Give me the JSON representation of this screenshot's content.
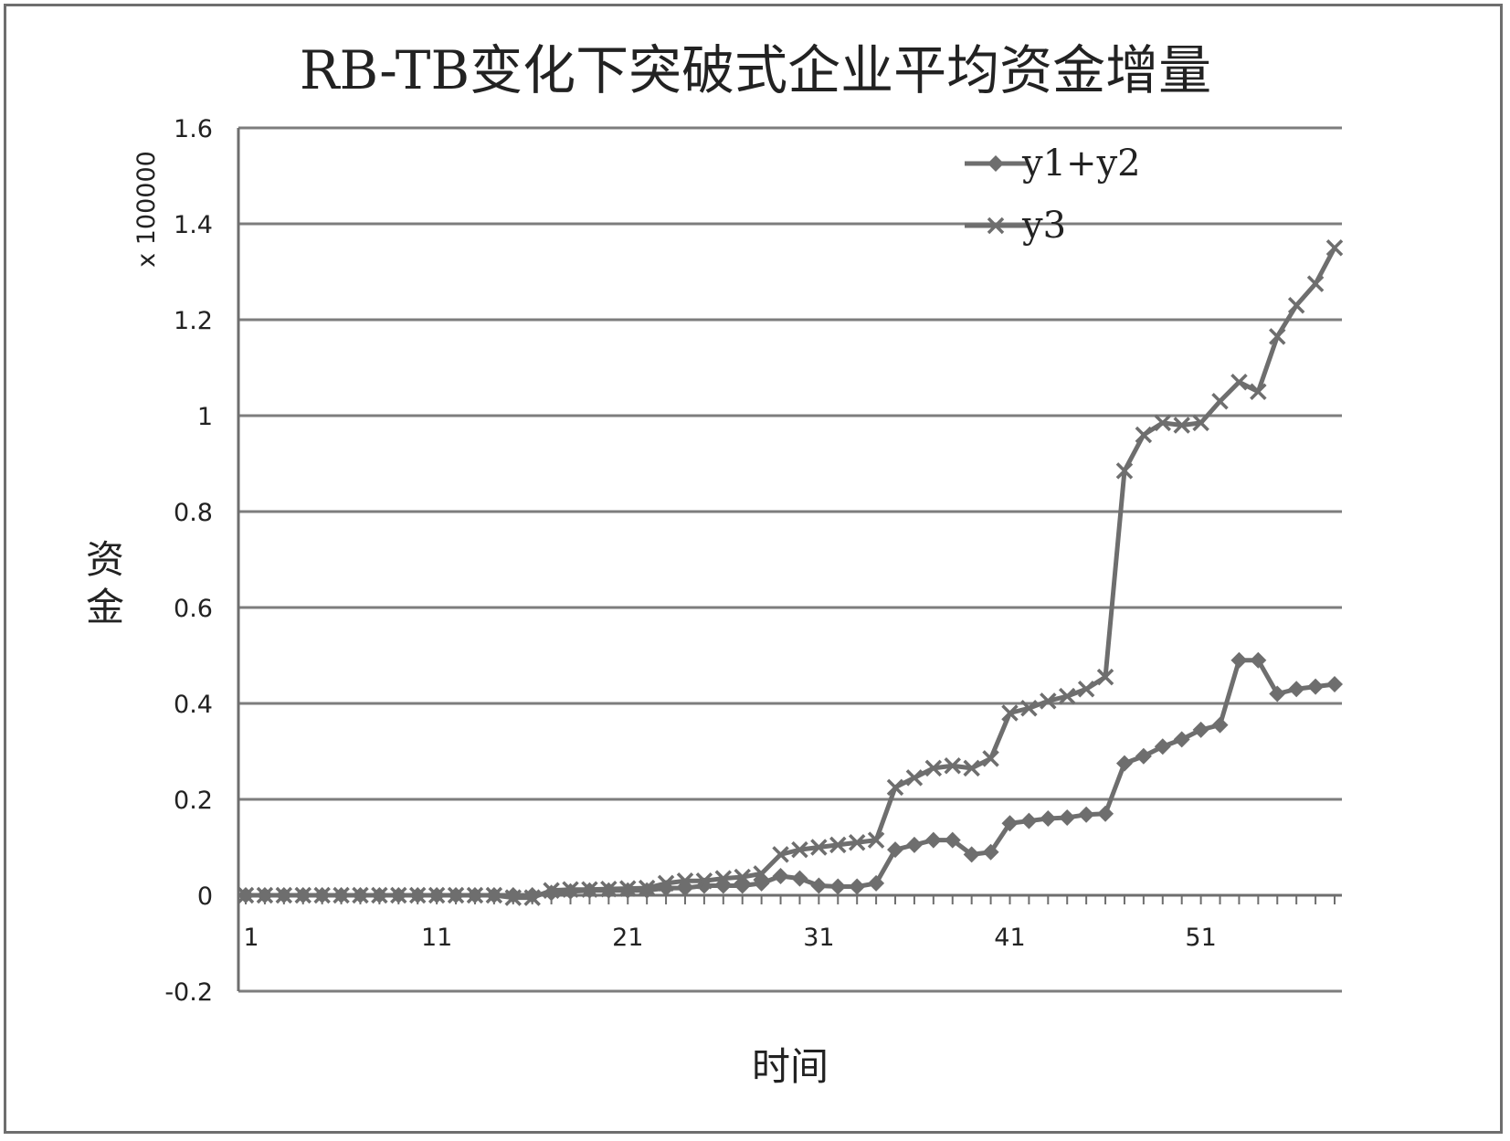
{
  "chart_data": {
    "type": "line",
    "title": "RB-TB变化下突破式企业平均资金增量",
    "xlabel": "时间",
    "ylabel": "资金",
    "y_multiplier": "x 100000",
    "x_tick_labels": [
      "1",
      "11",
      "21",
      "31",
      "41",
      "51"
    ],
    "y_tick_labels": [
      "-0.2",
      "0",
      "0.2",
      "0.4",
      "0.6",
      "0.8",
      "1",
      "1.2",
      "1.4",
      "1.6"
    ],
    "ylim": [
      -0.2,
      1.6
    ],
    "xlim": [
      1,
      58
    ],
    "grid": "horizontal",
    "legend": "top-right",
    "x": [
      1,
      2,
      3,
      4,
      5,
      6,
      7,
      8,
      9,
      10,
      11,
      12,
      13,
      14,
      15,
      16,
      17,
      18,
      19,
      20,
      21,
      22,
      23,
      24,
      25,
      26,
      27,
      28,
      29,
      30,
      31,
      32,
      33,
      34,
      35,
      36,
      37,
      38,
      39,
      40,
      41,
      42,
      43,
      44,
      45,
      46,
      47,
      48,
      49,
      50,
      51,
      52,
      53,
      54,
      55,
      56,
      57,
      58
    ],
    "series": [
      {
        "name": "y1+y2",
        "marker": "diamond",
        "values": [
          0,
          0,
          0,
          0,
          0,
          0,
          0,
          0,
          0,
          0,
          0,
          0,
          0,
          0,
          0,
          0,
          0.005,
          0.008,
          0.01,
          0.01,
          0.01,
          0.01,
          0.015,
          0.015,
          0.02,
          0.02,
          0.02,
          0.025,
          0.04,
          0.035,
          0.02,
          0.018,
          0.018,
          0.025,
          0.095,
          0.105,
          0.115,
          0.115,
          0.085,
          0.09,
          0.15,
          0.155,
          0.16,
          0.162,
          0.168,
          0.17,
          0.275,
          0.29,
          0.31,
          0.325,
          0.345,
          0.355,
          0.49,
          0.49,
          0.42,
          0.43,
          0.435,
          0.44
        ]
      },
      {
        "name": "y3",
        "marker": "x",
        "values": [
          0,
          0,
          0,
          0,
          0,
          0,
          0,
          0,
          0,
          0,
          0,
          0,
          0,
          0,
          -0.005,
          -0.005,
          0.01,
          0.012,
          0.012,
          0.013,
          0.014,
          0.015,
          0.025,
          0.03,
          0.03,
          0.035,
          0.038,
          0.045,
          0.085,
          0.095,
          0.1,
          0.105,
          0.11,
          0.115,
          0.225,
          0.245,
          0.265,
          0.27,
          0.265,
          0.285,
          0.38,
          0.39,
          0.405,
          0.415,
          0.43,
          0.455,
          0.885,
          0.96,
          0.985,
          0.98,
          0.985,
          1.03,
          1.07,
          1.05,
          1.165,
          1.23,
          1.275,
          1.35
        ]
      }
    ],
    "colors": {
      "line": "#6e6e6e",
      "grid": "#7d7d7d",
      "axis": "#6e6e6e",
      "text": "#222222"
    }
  }
}
